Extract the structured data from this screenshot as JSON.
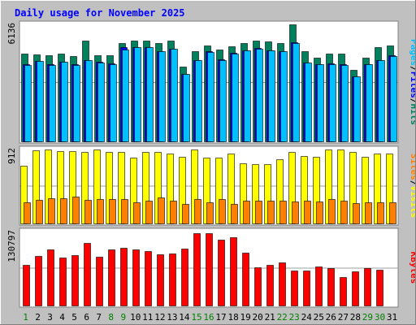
{
  "chart_data": {
    "type": "bar",
    "title": "Daily usage for November 2025",
    "x": [
      "1",
      "2",
      "3",
      "4",
      "5",
      "6",
      "7",
      "8",
      "9",
      "10",
      "11",
      "12",
      "13",
      "14",
      "15",
      "16",
      "17",
      "18",
      "19",
      "20",
      "21",
      "22",
      "23",
      "24",
      "25",
      "26",
      "27",
      "28",
      "29",
      "30",
      "31"
    ],
    "weekend_x": [
      "1",
      "8",
      "9",
      "15",
      "16",
      "22",
      "23",
      "29",
      "30"
    ],
    "colors": {
      "background": "#c0c0c0",
      "panel": "#ffffff",
      "title": "#0000ff",
      "axis_text": "#000000",
      "weekday_text": "#000000",
      "weekend_text": "#008000",
      "hits": "#00805c",
      "files": "#0000ff",
      "pages": "#00c0ff",
      "visits": "#ffff00",
      "sites": "#ff8000",
      "kbytes": "#ff0000"
    },
    "panels": [
      {
        "name": "Hits / Files / Pages",
        "ymax": 6136,
        "right_label": [
          "Pages",
          "/",
          "Files",
          "/",
          "Hits"
        ],
        "right_label_colors": [
          "pages",
          "axis_text",
          "files",
          "axis_text",
          "hits"
        ],
        "series": [
          {
            "name": "Hits",
            "color_key": "hits",
            "values": [
              4590,
              4580,
              4530,
              4590,
              4480,
              5300,
              4530,
              4530,
              5160,
              5300,
              5300,
              5160,
              5300,
              3940,
              4730,
              5020,
              4820,
              4980,
              5160,
              5300,
              5220,
              5160,
              6136,
              4730,
              4370,
              4590,
              4590,
              3770,
              4370,
              4940,
              5020
            ]
          },
          {
            "name": "Files",
            "color_key": "files",
            "values": [
              4030,
              4220,
              4050,
              4190,
              4040,
              4260,
              4170,
              4070,
              4930,
              4940,
              4940,
              4740,
              4860,
              3550,
              4280,
              4720,
              4300,
              4640,
              4780,
              4880,
              4790,
              4720,
              5180,
              4140,
              4050,
              4080,
              4040,
              3420,
              4060,
              4280,
              4510
            ]
          },
          {
            "name": "Pages",
            "color_key": "pages",
            "values": [
              4010,
              4200,
              4020,
              4170,
              4000,
              4240,
              4150,
              4040,
              4830,
              4930,
              4930,
              4730,
              4850,
              3540,
              4260,
              4700,
              4270,
              4620,
              4760,
              4860,
              4780,
              4710,
              5170,
              4120,
              4030,
              4060,
              4020,
              3400,
              4040,
              4260,
              4490
            ]
          }
        ]
      },
      {
        "name": "Visits / Sites",
        "ymax": 912,
        "right_label": [
          "Sites",
          "/",
          "Visits"
        ],
        "right_label_colors": [
          "sites",
          "axis_text",
          "visits"
        ],
        "series": [
          {
            "name": "Visits",
            "color_key": "visits",
            "values": [
              710,
              900,
              912,
              890,
              890,
              880,
              912,
              880,
              880,
              810,
              880,
              880,
              860,
              820,
              912,
              810,
              810,
              860,
              740,
              730,
              730,
              790,
              880,
              830,
              820,
              912,
              912,
              880,
              820,
              860,
              860
            ]
          },
          {
            "name": "Sites",
            "color_key": "sites",
            "values": [
              260,
              290,
              310,
              310,
              330,
              290,
              300,
              300,
              300,
              260,
              280,
              320,
              280,
              240,
              300,
              260,
              300,
              240,
              280,
              280,
              280,
              280,
              270,
              280,
              270,
              300,
              280,
              250,
              260,
              260,
              260
            ]
          }
        ]
      },
      {
        "name": "KBytes",
        "ymax": 130797,
        "right_label": [
          "KBytes"
        ],
        "right_label_colors": [
          "kbytes"
        ],
        "series": [
          {
            "name": "KBytes",
            "color_key": "kbytes",
            "values": [
              72100,
              87800,
              98600,
              84600,
              89200,
              110300,
              86400,
              98600,
              102400,
              99400,
              96200,
              90000,
              91500,
              100600,
              128500,
              128500,
              116100,
              120800,
              93100,
              67900,
              71900,
              76600,
              62200,
              62200,
              69500,
              66600,
              50000,
              61000,
              66600,
              62600,
              0
            ]
          }
        ]
      }
    ]
  }
}
